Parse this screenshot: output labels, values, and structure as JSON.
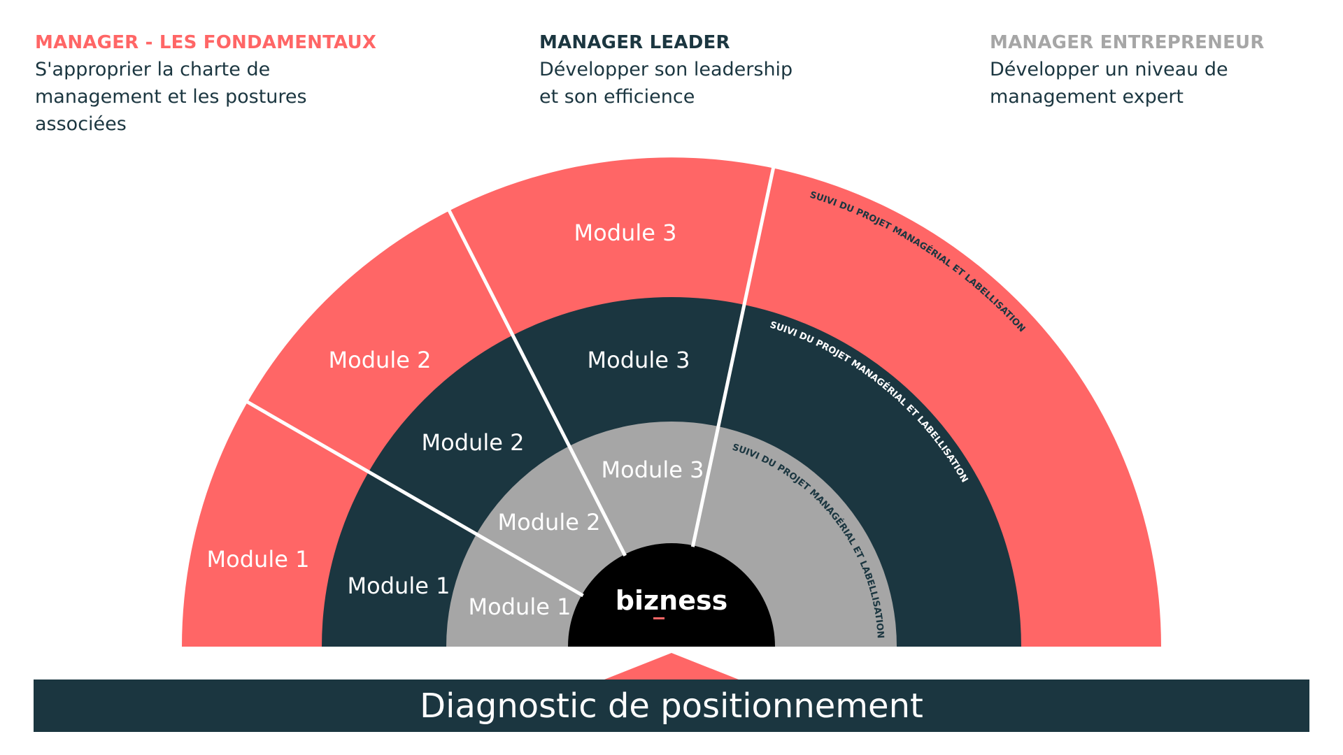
{
  "colors": {
    "red": "#ff6666",
    "dark": "#1b3640",
    "grey": "#a6a6a6",
    "black": "#000000",
    "white": "#ffffff"
  },
  "columns": [
    {
      "title": "MANAGER - LES FONDAMENTAUX",
      "lines": [
        "S'approprier la charte de",
        "management et les postures",
        "associées"
      ]
    },
    {
      "title": "MANAGER LEADER",
      "lines": [
        "Développer son leadership",
        "et son efficience"
      ]
    },
    {
      "title": "MANAGER ENTREPRENEUR",
      "lines": [
        "Développer un niveau de",
        "management expert"
      ]
    }
  ],
  "rings": {
    "outer": {
      "modules": [
        "Module 1",
        "Module 2",
        "Module 3"
      ],
      "follow_up": "SUIVI DU PROJET MANAGÉRIAL ET LABELLISATION"
    },
    "middle": {
      "modules": [
        "Module 1",
        "Module 2",
        "Module 3"
      ],
      "follow_up": "SUIVI DU PROJET MANAGÉRIAL ET LABELLISATION"
    },
    "inner": {
      "modules": [
        "Module 1",
        "Module 2",
        "Module 3"
      ],
      "follow_up": "SUIVI DU PROJET MANAGÉRIAL ET LABELLISATION"
    }
  },
  "logo": {
    "text": "bizness"
  },
  "footer": {
    "label": "Diagnostic de positionnement"
  }
}
